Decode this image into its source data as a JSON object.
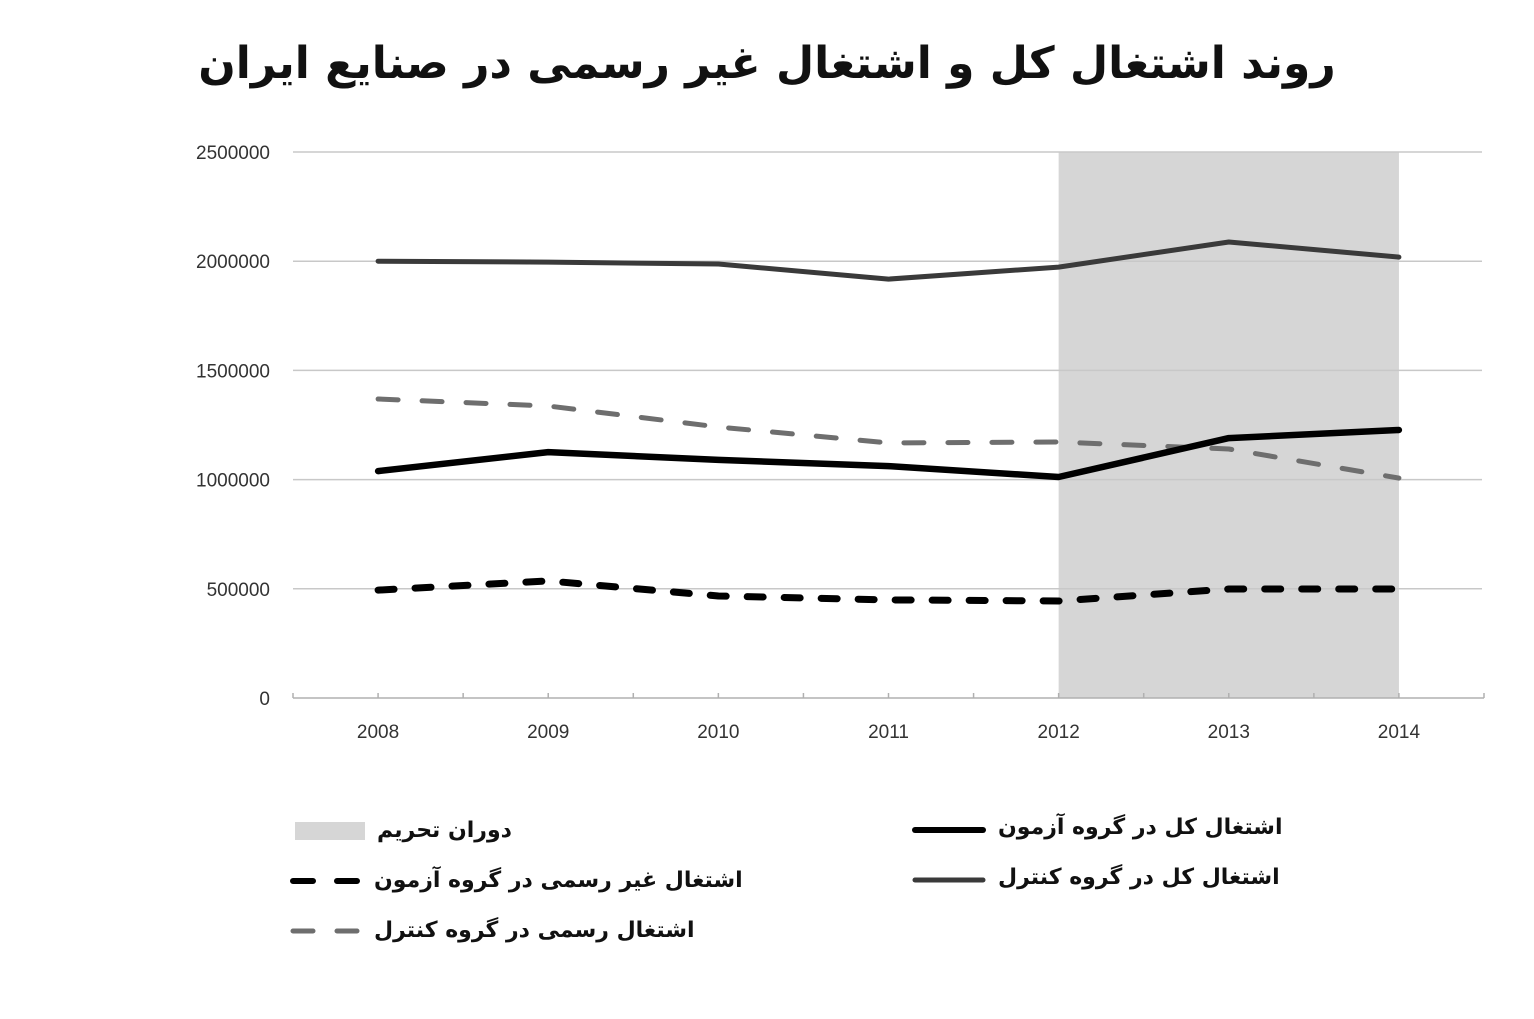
{
  "title": "روند اشتغال کل و اشتغال غیر رسمی در صنایع ایران",
  "colors": {
    "test_total": "#000000",
    "control_total": "#3a3a3a",
    "control_formal": "#6e6e6e",
    "test_informal": "#000000",
    "sanction_shade": "#d6d6d6",
    "grid": "#c8c8c8",
    "axis": "#b0b0b0"
  },
  "legend": {
    "sanction_period": "دوران تحریم",
    "test_total": "اشتغال کل در گروه آزمون",
    "control_total": "اشتغال کل در گروه کنترل",
    "test_informal": "اشتغال غیر رسمی در گروه آزمون",
    "control_formal": "اشتغال رسمی در گروه کنترل"
  },
  "chart_data": {
    "type": "line",
    "title": "روند اشتغال کل و اشتغال غیر رسمی در صنایع ایران",
    "xlabel": "",
    "ylabel": "",
    "categories": [
      "2008",
      "2009",
      "2010",
      "2011",
      "2012",
      "2013",
      "2014"
    ],
    "y_ticks": [
      "0",
      "500000",
      "1000000",
      "1500000",
      "2000000",
      "2500000"
    ],
    "ylim": [
      0,
      2500000
    ],
    "grid": true,
    "legend_position": "bottom",
    "shaded_region": {
      "label": "دوران تحریم",
      "from": "2012",
      "to": "2014"
    },
    "series": [
      {
        "key": "control_total",
        "name": "اشتغال کل در گروه کنترل",
        "style": "solid-dark-gray",
        "values": [
          2000000,
          1996000,
          1987000,
          1918000,
          1973000,
          2088000,
          2019000
        ]
      },
      {
        "key": "control_formal",
        "name": "اشتغال رسمی در گروه کنترل",
        "style": "dashed-gray",
        "values": [
          1369000,
          1337000,
          1241000,
          1168000,
          1172000,
          1140000,
          1007000
        ]
      },
      {
        "key": "test_total",
        "name": "اشتغال کل در گروه آزمون",
        "style": "solid-black",
        "values": [
          1039000,
          1126000,
          1090000,
          1062000,
          1012000,
          1190000,
          1227000
        ]
      },
      {
        "key": "test_informal",
        "name": "اشتغال غیر رسمی در گروه آزمون",
        "style": "dashed-black",
        "values": [
          494000,
          536000,
          467000,
          449000,
          444000,
          499000,
          499000
        ]
      }
    ]
  }
}
